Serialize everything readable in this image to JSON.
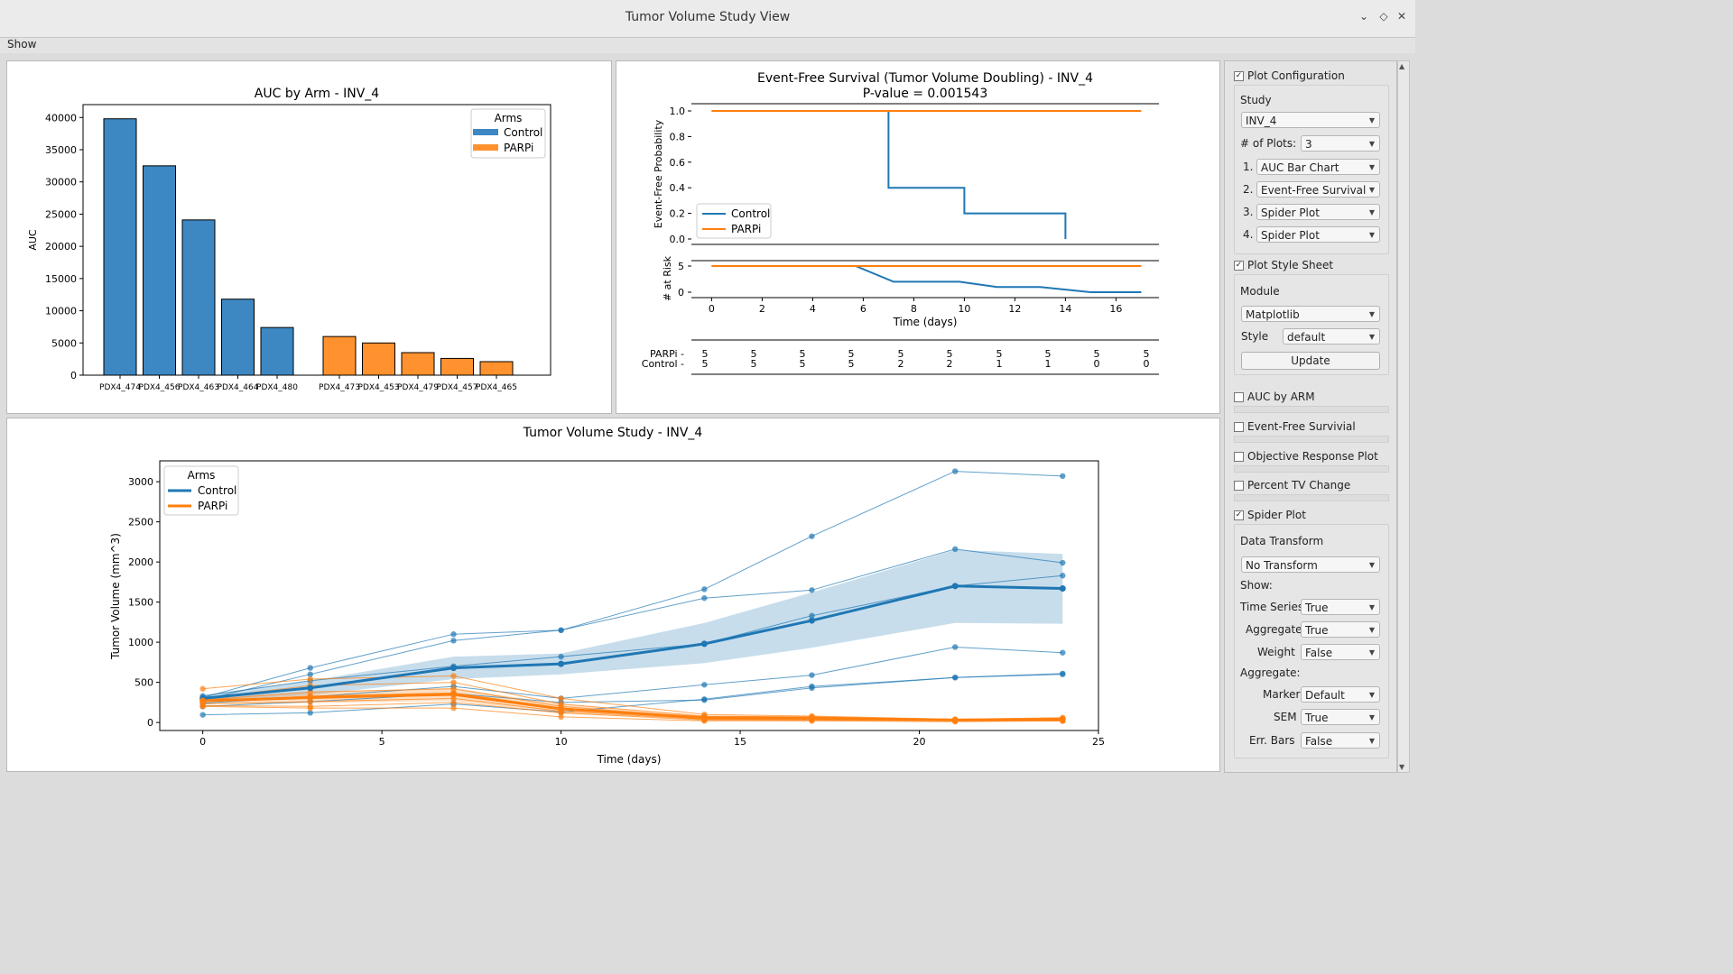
{
  "window": {
    "title": "Tumor Volume Study View"
  },
  "menu": {
    "show": "Show"
  },
  "sidebar": {
    "plot_config": {
      "label": "Plot Configuration",
      "checked": true
    },
    "study_label": "Study",
    "study_value": "INV_4",
    "num_plots_label": "# of Plots:",
    "num_plots_value": "3",
    "plots": [
      {
        "num": "1.",
        "value": "AUC Bar Chart"
      },
      {
        "num": "2.",
        "value": "Event-Free Survival"
      },
      {
        "num": "3.",
        "value": "Spider Plot"
      },
      {
        "num": "4.",
        "value": "Spider Plot"
      }
    ],
    "style_sheet": {
      "label": "Plot Style Sheet",
      "checked": true
    },
    "module_label": "Module",
    "module_value": "Matplotlib",
    "style_label": "Style",
    "style_value": "default",
    "update_label": "Update",
    "auc_by_arm": {
      "label": "AUC by ARM",
      "checked": false
    },
    "efs": {
      "label": "Event-Free Survivial",
      "checked": false
    },
    "orp": {
      "label": "Objective Response Plot",
      "checked": false
    },
    "ptv": {
      "label": "Percent TV Change",
      "checked": false
    },
    "spider": {
      "label": "Spider Plot",
      "checked": true
    },
    "data_transform_label": "Data Transform",
    "data_transform_value": "No Transform",
    "show_label": "Show:",
    "time_series_label": "Time Series",
    "time_series_value": "True",
    "aggregate_label": "Aggregate",
    "aggregate_value": "True",
    "weight_label": "Weight",
    "weight_value": "False",
    "aggregate2_label": "Aggregate:",
    "marker_label": "Marker",
    "marker_value": "Default",
    "sem_label": "SEM",
    "sem_value": "True",
    "errbars_label": "Err. Bars",
    "errbars_value": "False"
  },
  "chart_data": [
    {
      "type": "bar",
      "title": "AUC by Arm - INV_4",
      "xlabel": "",
      "ylabel": "AUC",
      "ylim": [
        0,
        42000
      ],
      "yticks": [
        0,
        5000,
        10000,
        15000,
        20000,
        25000,
        30000,
        35000,
        40000
      ],
      "legend": {
        "title": "Arms",
        "position": "top-right"
      },
      "series": [
        {
          "name": "Control",
          "color": "#3d87c2",
          "categories": [
            "PDX4_474",
            "PDX4_456",
            "PDX4_463",
            "PDX4_464",
            "PDX4_480"
          ],
          "values": [
            39800,
            32500,
            24100,
            11800,
            7400
          ]
        },
        {
          "name": "PARPi",
          "color": "#ff922e",
          "categories": [
            "PDX4_473",
            "PDX4_453",
            "PDX4_479",
            "PDX4_457",
            "PDX4_465"
          ],
          "values": [
            6000,
            5000,
            3500,
            2600,
            2100
          ]
        }
      ]
    },
    {
      "type": "line",
      "title": "Event-Free Survival (Tumor Volume Doubling) - INV_4",
      "subtitle": "P-value = 0.001543",
      "ylabel": "Event-Free Probability",
      "xlabel": "Time (days)",
      "yticks": [
        "0.0",
        "0.2",
        "0.4",
        "0.6",
        "0.8",
        "1.0"
      ],
      "xlim": [
        -0.8,
        17.7
      ],
      "xticks": [
        0,
        2,
        4,
        6,
        8,
        10,
        12,
        14,
        16
      ],
      "legend_position": "bottom-left",
      "series": [
        {
          "name": "Control",
          "color": "#1f77b4",
          "steps": [
            [
              0,
              1.0
            ],
            [
              7,
              1.0
            ],
            [
              7,
              0.4
            ],
            [
              10,
              0.4
            ],
            [
              10,
              0.2
            ],
            [
              14,
              0.2
            ],
            [
              14,
              0.0
            ]
          ]
        },
        {
          "name": "PARPi",
          "color": "#ff7f0e",
          "steps": [
            [
              0,
              1.0
            ],
            [
              17,
              1.0
            ]
          ]
        }
      ],
      "at_risk": {
        "ylabel": "# at Risk",
        "yticks": [
          0,
          5
        ],
        "series": [
          {
            "name": "Control",
            "color": "#1f77b4",
            "points": [
              [
                0,
                5
              ],
              [
                5.7,
                5
              ],
              [
                7.2,
                2
              ],
              [
                9.8,
                2
              ],
              [
                11.3,
                1
              ],
              [
                13,
                1
              ],
              [
                15,
                0
              ],
              [
                17,
                0
              ]
            ]
          },
          {
            "name": "PARPi",
            "color": "#ff7f0e",
            "points": [
              [
                0,
                5
              ],
              [
                17,
                5
              ]
            ]
          }
        ]
      },
      "risk_table": {
        "rows": [
          {
            "label": "PARPi",
            "values": [
              "5",
              "5",
              "5",
              "5",
              "5",
              "5",
              "5",
              "5",
              "5",
              "5"
            ]
          },
          {
            "label": "Control",
            "values": [
              "5",
              "5",
              "5",
              "5",
              "2",
              "2",
              "1",
              "1",
              "0",
              "0"
            ]
          }
        ]
      }
    },
    {
      "type": "line",
      "title": "Tumor Volume Study - INV_4",
      "xlabel": "Time (days)",
      "ylabel": "Tumor Volume (mm^3)",
      "xlim": [
        -1.2,
        25
      ],
      "ylim": [
        -100,
        3260
      ],
      "xticks": [
        0,
        5,
        10,
        15,
        20,
        25
      ],
      "yticks": [
        0,
        500,
        1000,
        1500,
        2000,
        2500,
        3000
      ],
      "legend": {
        "title": "Arms",
        "position": "top-left"
      },
      "x": [
        0,
        3,
        7,
        10,
        14,
        17,
        21,
        24
      ],
      "control_color": "#1f77b4",
      "parpi_color": "#ff7f0e",
      "control_individual": [
        [
          310,
          680,
          1100,
          1150,
          1660,
          2320,
          3130,
          3070
        ],
        [
          280,
          600,
          1020,
          1150,
          1550,
          1650,
          2160,
          1990
        ],
        [
          330,
          520,
          700,
          820,
          980,
          1330,
          1700,
          1830
        ],
        [
          240,
          320,
          450,
          300,
          470,
          590,
          940,
          870
        ],
        [
          200,
          260,
          360,
          250,
          280,
          430,
          560,
          610
        ],
        [
          95,
          120,
          230,
          130,
          290,
          450,
          560,
          600
        ]
      ],
      "control_mean": [
        300,
        430,
        680,
        730,
        980,
        1270,
        1700,
        1670
      ],
      "control_sem_upper": [
        340,
        520,
        820,
        860,
        1240,
        1620,
        2150,
        2100
      ],
      "control_sem_lower": [
        260,
        340,
        540,
        600,
        740,
        930,
        1240,
        1230
      ],
      "parpi_individual": [
        [
          420,
          540,
          580,
          300,
          100,
          80,
          40,
          60
        ],
        [
          300,
          460,
          500,
          230,
          80,
          70,
          30,
          40
        ],
        [
          280,
          380,
          420,
          200,
          60,
          50,
          30,
          50
        ],
        [
          260,
          330,
          370,
          180,
          40,
          40,
          30,
          40
        ],
        [
          230,
          260,
          300,
          140,
          40,
          30,
          30,
          20
        ],
        [
          210,
          200,
          250,
          120,
          30,
          30,
          20,
          20
        ],
        [
          200,
          180,
          180,
          70,
          20,
          20,
          10,
          20
        ]
      ],
      "parpi_mean": [
        270,
        310,
        350,
        170,
        60,
        55,
        30,
        40
      ],
      "parpi_sem_upper": [
        310,
        380,
        430,
        230,
        80,
        70,
        40,
        55
      ],
      "parpi_sem_lower": [
        230,
        240,
        270,
        110,
        40,
        40,
        20,
        25
      ]
    }
  ]
}
